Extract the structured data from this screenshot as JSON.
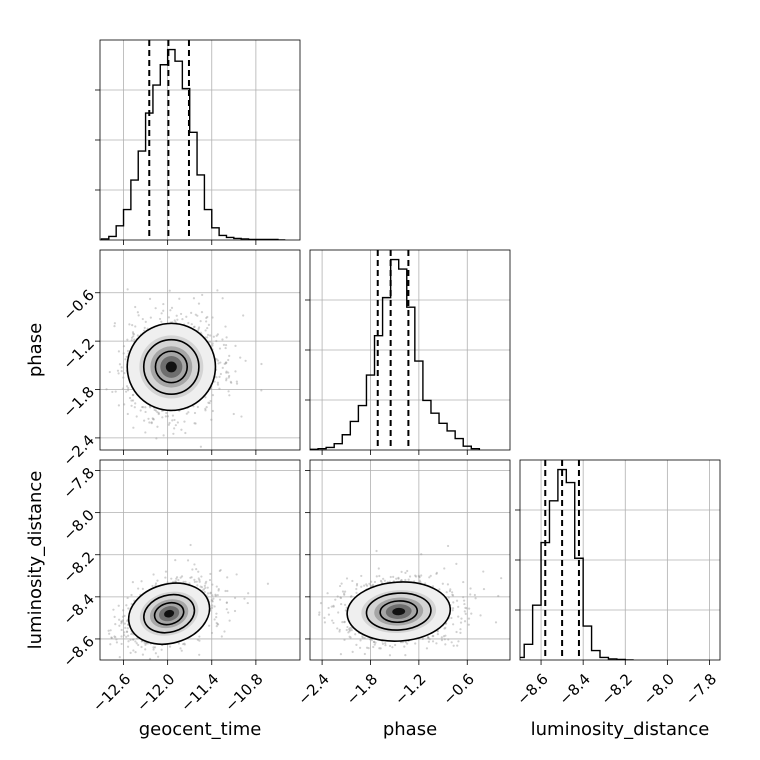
{
  "chart_data": {
    "type": "corner",
    "parameters": [
      "geocent_time",
      "phase",
      "luminosity_distance"
    ],
    "axis_labels": {
      "x": [
        "geocent_time",
        "phase",
        "luminosity_distance"
      ],
      "y": [
        "phase",
        "luminosity_distance"
      ]
    },
    "ranges": {
      "geocent_time": [
        -12.92,
        -10.2
      ],
      "phase": [
        -2.55,
        -0.07
      ],
      "luminosity_distance": [
        -8.7,
        -7.75
      ]
    },
    "ticks": {
      "geocent_time": [
        "-12.6",
        "-12.0",
        "-11.4",
        "-10.8"
      ],
      "phase": [
        "-2.4",
        "-1.8",
        "-1.2",
        "-0.6"
      ],
      "luminosity_distance": [
        "-8.6",
        "-8.4",
        "-8.2",
        "-8.0",
        "-7.8"
      ]
    },
    "quantile_lines": {
      "geocent_time": [
        -12.25,
        -11.99,
        -11.71
      ],
      "phase": [
        -1.71,
        -1.55,
        -1.33
      ],
      "luminosity_distance": [
        -8.58,
        -8.5,
        -8.42
      ]
    },
    "histograms": {
      "geocent_time": {
        "bin_edges": [
          -12.9,
          -12.8,
          -12.7,
          -12.6,
          -12.5,
          -12.4,
          -12.3,
          -12.2,
          -12.1,
          -12.0,
          -11.9,
          -11.8,
          -11.7,
          -11.6,
          -11.5,
          -11.4,
          -11.3,
          -11.2,
          -11.1,
          -11.0,
          -10.9,
          -10.8,
          -10.7,
          -10.6,
          -10.5,
          -10.4
        ],
        "counts": [
          2,
          7,
          28,
          60,
          118,
          175,
          250,
          305,
          345,
          375,
          352,
          298,
          212,
          128,
          60,
          24,
          9,
          5,
          3,
          2,
          1,
          1,
          1,
          1,
          0
        ]
      },
      "phase": {
        "bin_edges": [
          -2.55,
          -2.45,
          -2.35,
          -2.25,
          -2.15,
          -2.05,
          -1.95,
          -1.85,
          -1.75,
          -1.65,
          -1.55,
          -1.45,
          -1.35,
          -1.25,
          -1.15,
          -1.05,
          -0.95,
          -0.85,
          -0.75,
          -0.65,
          -0.55,
          -0.45
        ],
        "counts": [
          1,
          2,
          4,
          10,
          24,
          45,
          70,
          118,
          180,
          240,
          300,
          285,
          225,
          140,
          78,
          58,
          42,
          30,
          18,
          6,
          2
        ]
      },
      "luminosity_distance": {
        "bin_edges": [
          -8.72,
          -8.68,
          -8.64,
          -8.6,
          -8.56,
          -8.52,
          -8.48,
          -8.44,
          -8.4,
          -8.36,
          -8.32,
          -8.28,
          -8.24,
          -8.2,
          -8.16
        ],
        "counts": [
          5,
          30,
          105,
          225,
          305,
          365,
          340,
          195,
          65,
          18,
          5,
          2,
          1,
          0
        ]
      }
    },
    "joint": [
      {
        "x": "geocent_time",
        "y": "phase",
        "x_mean": -11.95,
        "y_mean": -1.52,
        "x_sd": 0.3,
        "y_sd": 0.27,
        "rho": 0.0
      },
      {
        "x": "geocent_time",
        "y": "luminosity_distance",
        "x_mean": -11.98,
        "y_mean": -8.48,
        "x_sd": 0.28,
        "y_sd": 0.07,
        "rho": 0.45
      },
      {
        "x": "phase",
        "y": "luminosity_distance",
        "x_mean": -1.45,
        "y_mean": -8.47,
        "x_sd": 0.32,
        "y_sd": 0.07,
        "rho": 0.1
      }
    ],
    "grid": true,
    "histogram_style": "step",
    "contour_levels": 3
  }
}
